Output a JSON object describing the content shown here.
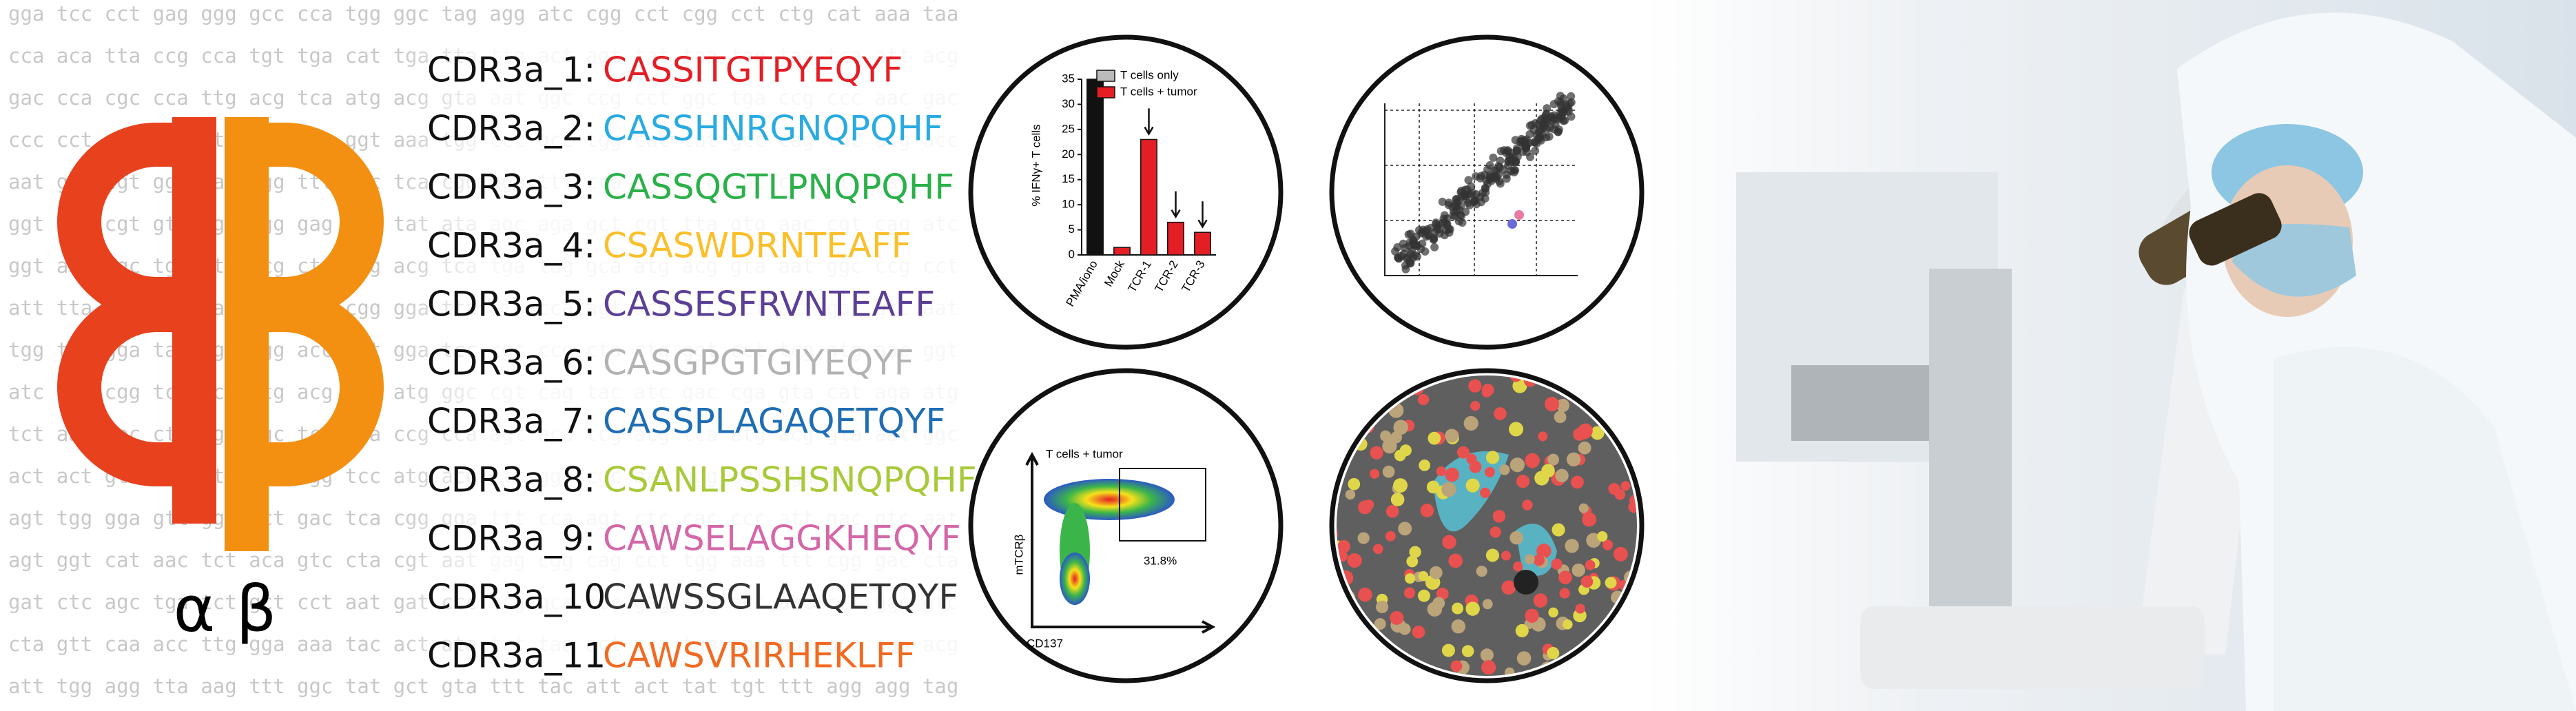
{
  "background_sequence": [
    "gga tcc cct gag ggg gcc cca tgg ggc tag agg atc cgg cct cgg cct ctg cat aaa taa",
    "cca aca tta ccg cca tgt tga cat tga tta ttg act agt tat taa tag taa tca att acg",
    "gac cca cgc cca ttg acg tca atg acg gta aat ggc ccg cct ggc tga ccg ccc aac gac",
    "ccc cct att gac gtc aat gac ggt aaa tgg ccc gcc tgg cat tat gcc cag tac atg acc",
    "aat ggg cgt gga tag cgg ttt gac tca cgg gga ttt cca agt ctc cac ccc att gac gtc",
    "ggt agg cgt gta cgg tgg gag gtc tat ata agc aga gct cgt tta gtg aac cgt cag atc",
    "ggt aat agc tgt ctg acg ctg ttg acg tca tga tag gca atg acg gta aat ggc ccg cct",
    "att tta cat ttg gaa agt cca cgg gga tta ctg cca agt acg ccc cct att gac gtc aat",
    "tgg tta gga tac agt tgg acc aat gga tcc cgc ccg cta ctg ggt cct tcg atg aac ggt",
    "atc tga cgg tcg gca ttg acg tca atg ggc cgt cag tac atc gac cga gta cat aga atg",
    "tct aat tac ctt tgt ggc tcc tga ccg cca agt aca tcg acg tca atg acg gta aat ggc",
    "act act gta cag ttt gtc agg tcc atg acg ctt gga cgc aat ggg cgt gga tag cgg ttt",
    "agt tgg gga gtt gga act gac tca cgg gga ttt cca agt ctc cac ccc att gac gtc aat",
    "agt ggt cat aac tct aca gtc cta cgt aat gag cgg cag cct tgg aaa ttt cgg gac cta",
    "gat ctc agc tga tct gct cct aat gat ccc tcg gca tcc gag tgg act aac ctt ggc gtc",
    "cta gtt caa acc ttg gga aaa tac act ata tct taa act cca tga aag agg gcc cgg acg",
    "att tgg agg tta aag ttt ggc tat gct gta ttt tac att act tat tgt ttt agg agg tag"
  ],
  "cdr3": [
    {
      "label": "CDR3a_1:",
      "sequence": "CASSITGTPYEQYF",
      "color": "#e31e24"
    },
    {
      "label": "CDR3a_2:",
      "sequence": "CASSHNRGNQPQHF",
      "color": "#29abe2"
    },
    {
      "label": "CDR3a_3:",
      "sequence": "CASSQGTLPNQPQHF",
      "color": "#2bb04a"
    },
    {
      "label": "CDR3a_4:",
      "sequence": "CSASWDRNTEAFF",
      "color": "#fbbf2a"
    },
    {
      "label": "CDR3a_5:",
      "sequence": "CASSESFRVNTEAFF",
      "color": "#5b3f96"
    },
    {
      "label": "CDR3a_6:",
      "sequence": "CASGPGTGIYEQYF",
      "color": "#b3b3b3"
    },
    {
      "label": "CDR3a_7:",
      "sequence": "CASSPLAGAQETQYF",
      "color": "#1f6db4"
    },
    {
      "label": "CDR3a_8:",
      "sequence": "CSANLPSSHSNQPQHF",
      "color": "#a8c93a"
    },
    {
      "label": "CDR3a_9:",
      "sequence": "CAWSELAGGKHEQYF",
      "color": "#d467a8"
    },
    {
      "label": "CDR3a_10",
      "sequence": "CAWSSGLAAQETQYF",
      "color": "#333333"
    },
    {
      "label": "CDR3a_11",
      "sequence": "CAWSVRIRHEKLFF",
      "color": "#f26a21"
    }
  ],
  "logo": {
    "alpha": "α",
    "beta": "β"
  },
  "chart_data": {
    "type": "bar",
    "y_label": "% IFNγ+ T cells",
    "categories": [
      "PMA/iono",
      "Mock",
      "TCR-1",
      "TCR-2",
      "TCR-3"
    ],
    "values": [
      35,
      1.5,
      23,
      6.5,
      4.5
    ],
    "colors": [
      "#111111",
      "#e31e24",
      "#e31e24",
      "#e31e24",
      "#e31e24"
    ],
    "legend": [
      {
        "name": "T cells only",
        "color": "#bbbbbb"
      },
      {
        "name": "T cells + tumor",
        "color": "#e31e24"
      }
    ],
    "ylim": [
      0,
      35
    ],
    "yticks": [
      0,
      5,
      10,
      15,
      20,
      25,
      30,
      35
    ]
  },
  "flow": {
    "title": "T cells + tumor",
    "gate_percent": "31.8%",
    "y_label": "mTCRβ",
    "x_label": "CD137"
  }
}
